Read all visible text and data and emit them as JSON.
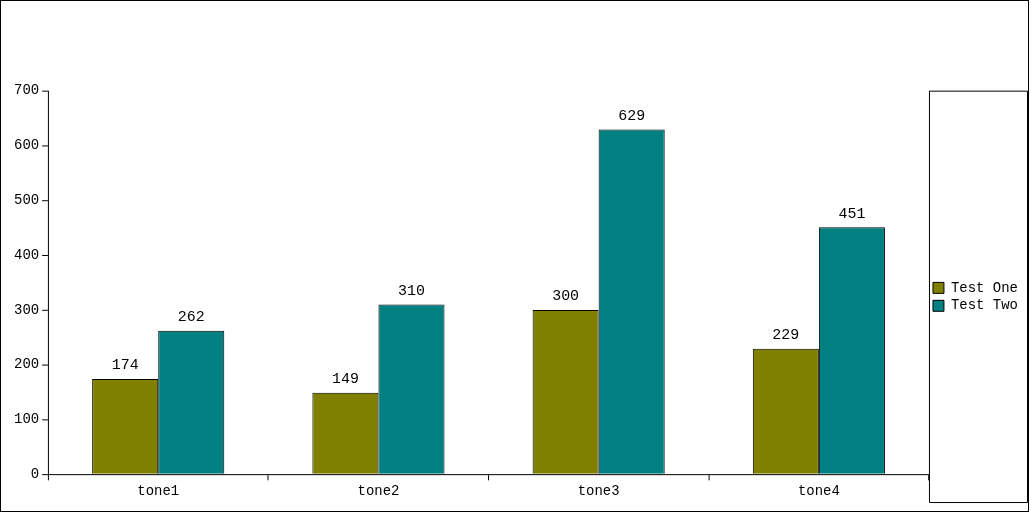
{
  "chart_data": {
    "type": "bar",
    "categories": [
      "tone1",
      "tone2",
      "tone3",
      "tone4"
    ],
    "series": [
      {
        "name": "Test One",
        "color": "#808000",
        "values": [
          174,
          149,
          300,
          229
        ]
      },
      {
        "name": "Test Two",
        "color": "#008080",
        "values": [
          262,
          310,
          629,
          451
        ]
      }
    ],
    "ylim": [
      0,
      700
    ],
    "yticks": [
      0,
      100,
      200,
      300,
      400,
      500,
      600,
      700
    ],
    "grid": false,
    "legend": "right",
    "data_labels": true
  }
}
